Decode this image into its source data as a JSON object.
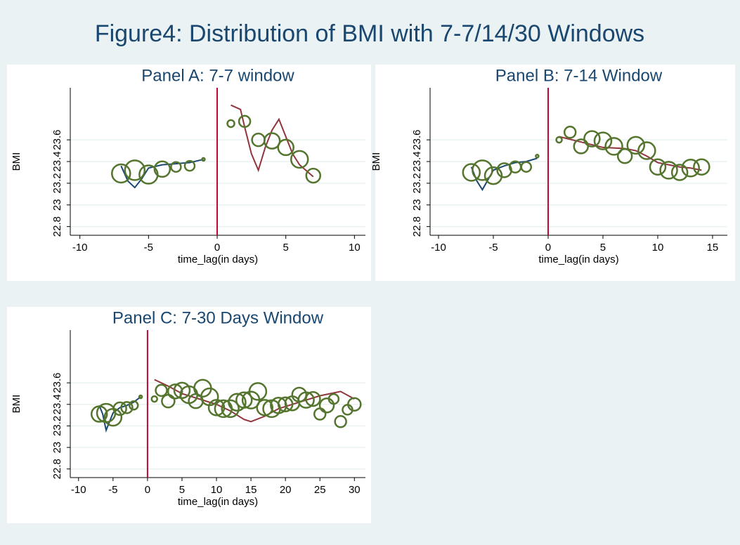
{
  "title": "Figure4: Distribution of BMI with 7-7/14/30 Windows",
  "chart_data": [
    {
      "type": "scatter",
      "title": "Panel A: 7-7 window",
      "x_label": "time_lag(in days)",
      "y_label": "BMI",
      "xlim": [
        -10.7,
        10.8
      ],
      "ylim": [
        22.72,
        24.08
      ],
      "xticks": [
        -10,
        -5,
        0,
        5,
        10
      ],
      "yticks": [
        22.8,
        23,
        23.2,
        23.4,
        23.6
      ],
      "grid": true,
      "xline": 0,
      "xline_color": "#c10534",
      "series": [
        {
          "type": "line",
          "color": "#1a476f",
          "x": [
            -7,
            -6.5,
            -6,
            -5.5,
            -5,
            -4,
            -3,
            -2,
            -1
          ],
          "values": [
            23.36,
            23.22,
            23.16,
            23.24,
            23.34,
            23.37,
            23.38,
            23.39,
            23.42
          ]
        },
        {
          "type": "line",
          "color": "#90353b",
          "x": [
            1,
            1.7,
            2,
            2.5,
            3,
            3.5,
            4,
            4.5,
            5,
            5.5,
            6,
            7
          ],
          "values": [
            23.92,
            23.88,
            23.72,
            23.47,
            23.32,
            23.53,
            23.69,
            23.79,
            23.63,
            23.47,
            23.37,
            23.26
          ]
        },
        {
          "type": "scatter",
          "color": "#55752f",
          "x": [
            -7,
            -6,
            -5,
            -4,
            -3,
            -2,
            -1,
            1,
            2,
            3,
            4,
            5,
            6,
            7
          ],
          "values": [
            23.29,
            23.32,
            23.28,
            23.33,
            23.35,
            23.36,
            23.42,
            23.75,
            23.77,
            23.6,
            23.59,
            23.53,
            23.42,
            23.27
          ],
          "sizes": [
            13,
            14,
            13,
            11,
            7,
            7,
            2,
            5,
            8,
            9,
            11,
            11,
            12,
            10
          ]
        }
      ]
    },
    {
      "type": "scatter",
      "title": "Panel B: 7-14 Window",
      "x_label": "time_lag(in days)",
      "y_label": "BMI",
      "xlim": [
        -10.77,
        16.35
      ],
      "ylim": [
        22.72,
        24.08
      ],
      "xticks": [
        -10,
        -5,
        0,
        5,
        10,
        15
      ],
      "yticks": [
        22.8,
        23,
        23.2,
        23.4,
        23.6
      ],
      "grid": true,
      "xline": 0,
      "xline_color": "#c10534",
      "series": [
        {
          "type": "line",
          "color": "#1a476f",
          "x": [
            -7,
            -6.5,
            -6,
            -5.5,
            -5,
            -4,
            -3,
            -2,
            -1
          ],
          "values": [
            23.35,
            23.22,
            23.14,
            23.23,
            23.32,
            23.36,
            23.39,
            23.4,
            23.43
          ]
        },
        {
          "type": "line",
          "color": "#90353b",
          "x": [
            1,
            3,
            5,
            7,
            8,
            9,
            10,
            11,
            12,
            13,
            14
          ],
          "values": [
            23.63,
            23.58,
            23.53,
            23.52,
            23.5,
            23.45,
            23.39,
            23.37,
            23.35,
            23.34,
            23.32
          ]
        },
        {
          "type": "scatter",
          "color": "#55752f",
          "x": [
            -7,
            -6,
            -5,
            -4,
            -3,
            -2,
            -1,
            1,
            2,
            3,
            4,
            5,
            6,
            7,
            8,
            9,
            10,
            11,
            12,
            13,
            14
          ],
          "values": [
            23.3,
            23.32,
            23.27,
            23.32,
            23.35,
            23.35,
            23.45,
            23.6,
            23.67,
            23.54,
            23.61,
            23.59,
            23.54,
            23.45,
            23.55,
            23.5,
            23.35,
            23.32,
            23.3,
            23.34,
            23.35
          ],
          "sizes": [
            12,
            14,
            12,
            10,
            8,
            7,
            2,
            4,
            8,
            10,
            11,
            12,
            12,
            10,
            12,
            12,
            11,
            12,
            11,
            12,
            11
          ]
        }
      ]
    },
    {
      "type": "scatter",
      "title": "Panel C: 7-30 Days Window",
      "x_label": "time_lag(in days)",
      "y_label": "BMI",
      "xlim": [
        -11.2,
        31.6
      ],
      "ylim": [
        22.72,
        24.09
      ],
      "xticks": [
        -10,
        -5,
        0,
        5,
        10,
        15,
        20,
        25,
        30
      ],
      "yticks": [
        22.8,
        23,
        23.2,
        23.4,
        23.6
      ],
      "grid": true,
      "xline": 0,
      "xline_color": "#c10534",
      "series": [
        {
          "type": "line",
          "color": "#1a476f",
          "x": [
            -7,
            -6.5,
            -6,
            -5.5,
            -5,
            -4,
            -3,
            -2,
            -1
          ],
          "values": [
            23.39,
            23.31,
            23.16,
            23.24,
            23.32,
            23.37,
            23.39,
            23.42,
            23.47
          ]
        },
        {
          "type": "line",
          "color": "#90353b",
          "x": [
            1,
            3,
            5,
            8,
            10,
            12,
            14,
            15,
            17,
            19,
            22,
            25,
            28,
            30
          ],
          "values": [
            23.63,
            23.57,
            23.5,
            23.44,
            23.4,
            23.34,
            23.26,
            23.24,
            23.29,
            23.36,
            23.42,
            23.48,
            23.52,
            23.45
          ]
        },
        {
          "type": "scatter",
          "color": "#55752f",
          "x": [
            -7,
            -6,
            -5,
            -4,
            -3,
            -2,
            -1,
            1,
            2,
            3,
            4,
            5,
            6,
            7,
            8,
            9,
            10,
            11,
            12,
            13,
            14,
            15,
            16,
            17,
            18,
            19,
            20,
            21,
            22,
            23,
            24,
            25,
            26,
            27,
            28,
            29,
            30
          ],
          "values": [
            23.31,
            23.32,
            23.28,
            23.36,
            23.37,
            23.39,
            23.47,
            23.45,
            23.53,
            23.43,
            23.52,
            23.53,
            23.49,
            23.43,
            23.55,
            23.47,
            23.37,
            23.36,
            23.36,
            23.42,
            23.44,
            23.44,
            23.52,
            23.37,
            23.36,
            23.39,
            23.4,
            23.41,
            23.49,
            23.44,
            23.45,
            23.31,
            23.39,
            23.45,
            23.24,
            23.35,
            23.4
          ],
          "sizes": [
            11,
            13,
            12,
            9,
            8,
            6,
            2,
            4,
            8,
            9,
            10,
            11,
            12,
            10,
            12,
            12,
            11,
            12,
            12,
            12,
            11,
            12,
            12,
            11,
            12,
            11,
            10,
            10,
            10,
            11,
            10,
            8,
            10,
            7,
            8,
            7,
            9
          ]
        }
      ]
    }
  ]
}
